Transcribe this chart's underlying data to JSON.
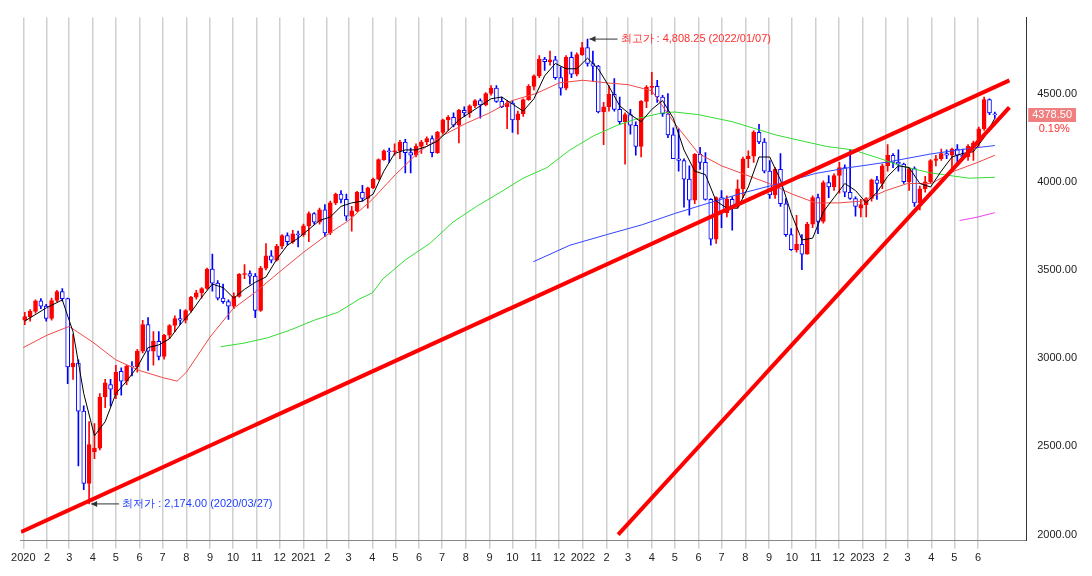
{
  "chart_data": {
    "type": "candlestick",
    "x": [
      "2020-01-03",
      "2020-01-10",
      "2020-01-17",
      "2020-01-24",
      "2020-01-31",
      "2020-02-07",
      "2020-02-14",
      "2020-02-21",
      "2020-02-28",
      "2020-03-06",
      "2020-03-13",
      "2020-03-20",
      "2020-03-27",
      "2020-04-03",
      "2020-04-10",
      "2020-04-17",
      "2020-04-24",
      "2020-05-01",
      "2020-05-08",
      "2020-05-15",
      "2020-05-22",
      "2020-05-29",
      "2020-06-05",
      "2020-06-12",
      "2020-06-19",
      "2020-06-26",
      "2020-07-03",
      "2020-07-10",
      "2020-07-17",
      "2020-07-24",
      "2020-07-31",
      "2020-08-07",
      "2020-08-14",
      "2020-08-21",
      "2020-08-28",
      "2020-09-04",
      "2020-09-11",
      "2020-09-18",
      "2020-09-25",
      "2020-10-02",
      "2020-10-09",
      "2020-10-16",
      "2020-10-23",
      "2020-10-30",
      "2020-11-06",
      "2020-11-13",
      "2020-11-20",
      "2020-11-27",
      "2020-12-04",
      "2020-12-11",
      "2020-12-18",
      "2020-12-25",
      "2021-01-01",
      "2021-01-08",
      "2021-01-15",
      "2021-01-22",
      "2021-01-29",
      "2021-02-05",
      "2021-02-12",
      "2021-02-19",
      "2021-02-26",
      "2021-03-05",
      "2021-03-12",
      "2021-03-19",
      "2021-03-26",
      "2021-04-02",
      "2021-04-09",
      "2021-04-16",
      "2021-04-23",
      "2021-04-30",
      "2021-05-07",
      "2021-05-14",
      "2021-05-21",
      "2021-05-28",
      "2021-06-04",
      "2021-06-11",
      "2021-06-18",
      "2021-06-25",
      "2021-07-02",
      "2021-07-09",
      "2021-07-16",
      "2021-07-23",
      "2021-07-30",
      "2021-08-06",
      "2021-08-13",
      "2021-08-20",
      "2021-08-27",
      "2021-09-03",
      "2021-09-10",
      "2021-09-17",
      "2021-09-24",
      "2021-10-01",
      "2021-10-08",
      "2021-10-15",
      "2021-10-22",
      "2021-10-29",
      "2021-11-05",
      "2021-11-12",
      "2021-11-19",
      "2021-11-26",
      "2021-12-03",
      "2021-12-10",
      "2021-12-17",
      "2021-12-24",
      "2021-12-31",
      "2022-01-07",
      "2022-01-14",
      "2022-01-21",
      "2022-01-28",
      "2022-02-04",
      "2022-02-11",
      "2022-02-18",
      "2022-02-25",
      "2022-03-04",
      "2022-03-11",
      "2022-03-18",
      "2022-03-25",
      "2022-04-01",
      "2022-04-08",
      "2022-04-15",
      "2022-04-22",
      "2022-04-29",
      "2022-05-06",
      "2022-05-13",
      "2022-05-20",
      "2022-05-27",
      "2022-06-03",
      "2022-06-10",
      "2022-06-17",
      "2022-06-24",
      "2022-07-01",
      "2022-07-08",
      "2022-07-15",
      "2022-07-22",
      "2022-07-29",
      "2022-08-05",
      "2022-08-12",
      "2022-08-19",
      "2022-08-26",
      "2022-09-02",
      "2022-09-09",
      "2022-09-16",
      "2022-09-23",
      "2022-09-30",
      "2022-10-07",
      "2022-10-14",
      "2022-10-21",
      "2022-10-28",
      "2022-11-04",
      "2022-11-11",
      "2022-11-18",
      "2022-11-25",
      "2022-12-02",
      "2022-12-09",
      "2022-12-16",
      "2022-12-23",
      "2022-12-30",
      "2023-01-06",
      "2023-01-13",
      "2023-01-20",
      "2023-01-27",
      "2023-02-03",
      "2023-02-10",
      "2023-02-17",
      "2023-02-24",
      "2023-03-03",
      "2023-03-10",
      "2023-03-17",
      "2023-03-24",
      "2023-03-31",
      "2023-04-07",
      "2023-04-14",
      "2023-04-21",
      "2023-04-28",
      "2023-05-05",
      "2023-05-12",
      "2023-05-19",
      "2023-05-26",
      "2023-06-02",
      "2023-06-09",
      "2023-06-16",
      "2023-06-23"
    ],
    "ohlc": [
      [
        3215,
        3260,
        3190,
        3235
      ],
      [
        3235,
        3275,
        3210,
        3265
      ],
      [
        3265,
        3330,
        3255,
        3325
      ],
      [
        3325,
        3337,
        3280,
        3295
      ],
      [
        3295,
        3305,
        3210,
        3225
      ],
      [
        3225,
        3340,
        3215,
        3327
      ],
      [
        3327,
        3385,
        3320,
        3378
      ],
      [
        3378,
        3395,
        3325,
        3337
      ],
      [
        3337,
        3340,
        2855,
        2951
      ],
      [
        2951,
        3135,
        2880,
        2972
      ],
      [
        2972,
        2990,
        2390,
        2700
      ],
      [
        2700,
        2730,
        2255,
        2290
      ],
      [
        2290,
        2640,
        2174,
        2510
      ],
      [
        2470,
        2630,
        2430,
        2490
      ],
      [
        2490,
        2800,
        2480,
        2780
      ],
      [
        2780,
        2880,
        2720,
        2860
      ],
      [
        2850,
        2880,
        2730,
        2825
      ],
      [
        2790,
        2960,
        2770,
        2920
      ],
      [
        2925,
        2945,
        2790,
        2870
      ],
      [
        2870,
        2960,
        2850,
        2955
      ],
      [
        2955,
        2980,
        2900,
        2950
      ],
      [
        2950,
        3050,
        2920,
        3040
      ],
      [
        3040,
        3215,
        3030,
        3190
      ],
      [
        3190,
        3230,
        2930,
        3040
      ],
      [
        3040,
        3150,
        2960,
        3095
      ],
      [
        3095,
        3150,
        2990,
        3010
      ],
      [
        3010,
        3135,
        2995,
        3130
      ],
      [
        3130,
        3190,
        3110,
        3185
      ],
      [
        3185,
        3240,
        3150,
        3225
      ],
      [
        3225,
        3275,
        3190,
        3215
      ],
      [
        3215,
        3275,
        3200,
        3270
      ],
      [
        3270,
        3350,
        3260,
        3345
      ],
      [
        3345,
        3385,
        3335,
        3370
      ],
      [
        3370,
        3400,
        3340,
        3395
      ],
      [
        3395,
        3510,
        3390,
        3505
      ],
      [
        3505,
        3590,
        3380,
        3425
      ],
      [
        3425,
        3440,
        3330,
        3340
      ],
      [
        3340,
        3420,
        3310,
        3320
      ],
      [
        3320,
        3330,
        3220,
        3295
      ],
      [
        3295,
        3370,
        3280,
        3350
      ],
      [
        3350,
        3480,
        3345,
        3475
      ],
      [
        3475,
        3530,
        3450,
        3480
      ],
      [
        3480,
        3495,
        3420,
        3465
      ],
      [
        3465,
        3480,
        3230,
        3270
      ],
      [
        3270,
        3520,
        3265,
        3510
      ],
      [
        3510,
        3650,
        3500,
        3580
      ],
      [
        3580,
        3610,
        3540,
        3555
      ],
      [
        3555,
        3645,
        3550,
        3635
      ],
      [
        3635,
        3700,
        3620,
        3695
      ],
      [
        3695,
        3710,
        3640,
        3660
      ],
      [
        3660,
        3725,
        3650,
        3705
      ],
      [
        3705,
        3720,
        3630,
        3700
      ],
      [
        3700,
        3760,
        3690,
        3750
      ],
      [
        3750,
        3830,
        3660,
        3820
      ],
      [
        3820,
        3825,
        3760,
        3770
      ],
      [
        3770,
        3850,
        3760,
        3840
      ],
      [
        3840,
        3870,
        3690,
        3710
      ],
      [
        3710,
        3890,
        3700,
        3880
      ],
      [
        3880,
        3935,
        3870,
        3930
      ],
      [
        3930,
        3950,
        3880,
        3900
      ],
      [
        3900,
        3930,
        3780,
        3805
      ],
      [
        3805,
        3860,
        3720,
        3835
      ],
      [
        3835,
        3945,
        3830,
        3940
      ],
      [
        3940,
        3980,
        3890,
        3905
      ],
      [
        3905,
        3970,
        3850,
        3965
      ],
      [
        3965,
        4020,
        3960,
        4015
      ],
      [
        4015,
        4130,
        4010,
        4125
      ],
      [
        4125,
        4180,
        4120,
        4175
      ],
      [
        4175,
        4190,
        4110,
        4170
      ],
      [
        4170,
        4215,
        4150,
        4175
      ],
      [
        4175,
        4235,
        4130,
        4225
      ],
      [
        4225,
        4240,
        4050,
        4165
      ],
      [
        4165,
        4190,
        4050,
        4150
      ],
      [
        4150,
        4215,
        4140,
        4200
      ],
      [
        4200,
        4235,
        4160,
        4225
      ],
      [
        4225,
        4255,
        4210,
        4245
      ],
      [
        4245,
        4260,
        4140,
        4165
      ],
      [
        4165,
        4285,
        4160,
        4280
      ],
      [
        4280,
        4355,
        4270,
        4350
      ],
      [
        4350,
        4375,
        4290,
        4365
      ],
      [
        4365,
        4390,
        4310,
        4320
      ],
      [
        4320,
        4410,
        4220,
        4405
      ],
      [
        4405,
        4425,
        4370,
        4390
      ],
      [
        4390,
        4435,
        4365,
        4430
      ],
      [
        4430,
        4465,
        4420,
        4460
      ],
      [
        4460,
        4470,
        4360,
        4435
      ],
      [
        4435,
        4505,
        4430,
        4500
      ],
      [
        4500,
        4545,
        4490,
        4530
      ],
      [
        4530,
        4545,
        4450,
        4455
      ],
      [
        4455,
        4480,
        4420,
        4425
      ],
      [
        4425,
        4460,
        4300,
        4445
      ],
      [
        4445,
        4460,
        4280,
        4350
      ],
      [
        4350,
        4400,
        4270,
        4385
      ],
      [
        4385,
        4470,
        4370,
        4465
      ],
      [
        4465,
        4550,
        4460,
        4540
      ],
      [
        4540,
        4605,
        4520,
        4600
      ],
      [
        4600,
        4715,
        4590,
        4695
      ],
      [
        4695,
        4705,
        4630,
        4680
      ],
      [
        4680,
        4740,
        4660,
        4690
      ],
      [
        4690,
        4710,
        4580,
        4590
      ],
      [
        4590,
        4650,
        4490,
        4530
      ],
      [
        4530,
        4715,
        4520,
        4705
      ],
      [
        4705,
        4735,
        4590,
        4610
      ],
      [
        4610,
        4730,
        4600,
        4720
      ],
      [
        4720,
        4790,
        4715,
        4760
      ],
      [
        4760,
        4808.25,
        4655,
        4670
      ],
      [
        4670,
        4740,
        4570,
        4655
      ],
      [
        4655,
        4660,
        4390,
        4395
      ],
      [
        4395,
        4450,
        4210,
        4425
      ],
      [
        4425,
        4545,
        4400,
        4495
      ],
      [
        4495,
        4585,
        4400,
        4410
      ],
      [
        4410,
        4480,
        4325,
        4340
      ],
      [
        4340,
        4390,
        4100,
        4380
      ],
      [
        4380,
        4410,
        4270,
        4320
      ],
      [
        4320,
        4340,
        4150,
        4200
      ],
      [
        4200,
        4460,
        4140,
        4455
      ],
      [
        4455,
        4545,
        4420,
        4535
      ],
      [
        4535,
        4620,
        4495,
        4540
      ],
      [
        4540,
        4575,
        4450,
        4480
      ],
      [
        4480,
        4490,
        4370,
        4385
      ],
      [
        4385,
        4500,
        4250,
        4265
      ],
      [
        4265,
        4305,
        4130,
        4130
      ],
      [
        4130,
        4300,
        4060,
        4120
      ],
      [
        4120,
        4130,
        3855,
        4015
      ],
      [
        4015,
        4090,
        3810,
        3895
      ],
      [
        3895,
        4160,
        3875,
        4155
      ],
      [
        4155,
        4195,
        4070,
        4110
      ],
      [
        4110,
        4165,
        3895,
        3900
      ],
      [
        3900,
        3905,
        3640,
        3675
      ],
      [
        3675,
        3915,
        3650,
        3910
      ],
      [
        3910,
        3950,
        3740,
        3825
      ],
      [
        3825,
        3920,
        3800,
        3900
      ],
      [
        3900,
        3915,
        3725,
        3860
      ],
      [
        3860,
        4010,
        3850,
        3960
      ],
      [
        3960,
        4140,
        3910,
        4130
      ],
      [
        4130,
        4175,
        4080,
        4145
      ],
      [
        4145,
        4290,
        4110,
        4280
      ],
      [
        4280,
        4325,
        4215,
        4225
      ],
      [
        4225,
        4245,
        4050,
        4060
      ],
      [
        4060,
        4120,
        3905,
        3925
      ],
      [
        3925,
        4080,
        3905,
        4070
      ],
      [
        4070,
        4160,
        3860,
        3875
      ],
      [
        3875,
        3905,
        3690,
        3700
      ],
      [
        3700,
        3735,
        3610,
        3615
      ],
      [
        3615,
        3810,
        3600,
        3645
      ],
      [
        3645,
        3700,
        3502,
        3590
      ],
      [
        3590,
        3770,
        3590,
        3760
      ],
      [
        3760,
        3920,
        3740,
        3910
      ],
      [
        3910,
        3930,
        3705,
        3775
      ],
      [
        3775,
        4005,
        3765,
        3995
      ],
      [
        3995,
        4035,
        3910,
        3970
      ],
      [
        3970,
        4045,
        3950,
        4035
      ],
      [
        4035,
        4110,
        3935,
        4080
      ],
      [
        4080,
        4095,
        3915,
        3940
      ],
      [
        3940,
        4180,
        3900,
        3905
      ],
      [
        3905,
        3915,
        3805,
        3860
      ],
      [
        3850,
        3900,
        3800,
        3870
      ],
      [
        3870,
        3910,
        3800,
        3905
      ],
      [
        3905,
        4015,
        3890,
        4010
      ],
      [
        4010,
        4030,
        3900,
        3990
      ],
      [
        3990,
        4100,
        3960,
        4090
      ],
      [
        4090,
        4210,
        4060,
        4150
      ],
      [
        4150,
        4160,
        4080,
        4110
      ],
      [
        4110,
        4180,
        4060,
        4100
      ],
      [
        4100,
        4105,
        3990,
        4000
      ],
      [
        4000,
        4080,
        3950,
        4075
      ],
      [
        4075,
        4085,
        3860,
        3880
      ],
      [
        3880,
        3975,
        3840,
        3960
      ],
      [
        3960,
        4030,
        3940,
        4000
      ],
      [
        4000,
        4125,
        3990,
        4120
      ],
      [
        4120,
        4150,
        4090,
        4130
      ],
      [
        4130,
        4185,
        4120,
        4160
      ],
      [
        4160,
        4180,
        4130,
        4150
      ],
      [
        4150,
        4190,
        4080,
        4185
      ],
      [
        4185,
        4210,
        4100,
        4150
      ],
      [
        4150,
        4185,
        4130,
        4140
      ],
      [
        4140,
        4210,
        4120,
        4200
      ],
      [
        4200,
        4230,
        4120,
        4220
      ],
      [
        4220,
        4310,
        4200,
        4300
      ],
      [
        4300,
        4480,
        4290,
        4465
      ],
      [
        4465,
        4470,
        4380,
        4390
      ],
      [
        4385,
        4395,
        4360,
        4378.5
      ]
    ],
    "colors": [
      "#ff0000",
      "#ff0000",
      "#ff0000",
      "#0000ff",
      "#0000ff",
      "#ff0000",
      "#ff0000",
      "#0000ff",
      "#0000ff",
      "#ff0000",
      "#0000ff",
      "#0000ff",
      "#ff0000",
      "#ff0000",
      "#ff0000",
      "#ff0000",
      "#0000ff",
      "#ff0000",
      "#0000ff",
      "#ff0000",
      "#0000ff",
      "#ff0000",
      "#ff0000",
      "#0000ff",
      "#ff0000",
      "#0000ff",
      "#ff0000",
      "#ff0000",
      "#ff0000",
      "#0000ff",
      "#ff0000",
      "#ff0000",
      "#ff0000",
      "#ff0000",
      "#ff0000",
      "#0000ff",
      "#0000ff",
      "#0000ff",
      "#0000ff",
      "#ff0000",
      "#ff0000",
      "#ff0000",
      "#0000ff",
      "#0000ff",
      "#ff0000",
      "#ff0000",
      "#0000ff",
      "#ff0000",
      "#ff0000",
      "#0000ff",
      "#ff0000",
      "#0000ff",
      "#ff0000",
      "#ff0000",
      "#0000ff",
      "#ff0000",
      "#0000ff",
      "#ff0000",
      "#ff0000",
      "#0000ff",
      "#0000ff",
      "#ff0000",
      "#ff0000",
      "#0000ff",
      "#ff0000",
      "#ff0000",
      "#ff0000",
      "#ff0000",
      "#0000ff",
      "#ff0000",
      "#ff0000",
      "#0000ff",
      "#0000ff",
      "#ff0000",
      "#ff0000",
      "#ff0000",
      "#0000ff",
      "#ff0000",
      "#ff0000",
      "#ff0000",
      "#0000ff",
      "#ff0000",
      "#0000ff",
      "#ff0000",
      "#ff0000",
      "#0000ff",
      "#ff0000",
      "#ff0000",
      "#0000ff",
      "#0000ff",
      "#ff0000",
      "#0000ff",
      "#ff0000",
      "#ff0000",
      "#ff0000",
      "#ff0000",
      "#ff0000",
      "#0000ff",
      "#ff0000",
      "#0000ff",
      "#0000ff",
      "#ff0000",
      "#0000ff",
      "#ff0000",
      "#ff0000",
      "#0000ff",
      "#0000ff",
      "#0000ff",
      "#ff0000",
      "#ff0000",
      "#0000ff",
      "#0000ff",
      "#ff0000",
      "#0000ff",
      "#0000ff",
      "#ff0000",
      "#ff0000",
      "#ff0000",
      "#0000ff",
      "#0000ff",
      "#0000ff",
      "#0000ff",
      "#0000ff",
      "#0000ff",
      "#0000ff",
      "#ff0000",
      "#0000ff",
      "#0000ff",
      "#0000ff",
      "#ff0000",
      "#0000ff",
      "#ff0000",
      "#0000ff",
      "#ff0000",
      "#ff0000",
      "#ff0000",
      "#ff0000",
      "#0000ff",
      "#0000ff",
      "#0000ff",
      "#ff0000",
      "#0000ff",
      "#0000ff",
      "#0000ff",
      "#ff0000",
      "#0000ff",
      "#ff0000",
      "#ff0000",
      "#0000ff",
      "#ff0000",
      "#0000ff",
      "#ff0000",
      "#ff0000",
      "#0000ff",
      "#0000ff",
      "#0000ff",
      "#ff0000",
      "#ff0000",
      "#ff0000",
      "#0000ff",
      "#ff0000",
      "#ff0000",
      "#0000ff",
      "#0000ff",
      "#0000ff",
      "#ff0000",
      "#0000ff",
      "#ff0000",
      "#ff0000",
      "#ff0000",
      "#ff0000",
      "#ff0000",
      "#0000ff",
      "#ff0000",
      "#0000ff",
      "#0000ff",
      "#ff0000",
      "#ff0000",
      "#ff0000",
      "#ff0000",
      "#0000ff",
      "#0000ff"
    ],
    "series": [
      {
        "type": "line",
        "color": "#000000",
        "x": [
          "2020-01-03",
          "2020-01-31",
          "2020-02-21",
          "2020-03-06",
          "2020-03-20",
          "2020-04-03",
          "2020-04-17",
          "2020-05-01",
          "2020-05-15",
          "2020-05-29",
          "2020-06-12",
          "2020-06-26",
          "2020-07-10",
          "2020-07-24",
          "2020-08-07",
          "2020-08-21",
          "2020-09-04",
          "2020-09-18",
          "2020-10-02",
          "2020-10-16",
          "2020-10-30",
          "2020-11-13",
          "2020-11-27",
          "2020-12-11",
          "2020-12-25",
          "2021-01-08",
          "2021-01-22",
          "2021-02-05",
          "2021-02-19",
          "2021-03-05",
          "2021-03-19",
          "2021-04-02",
          "2021-04-16",
          "2021-04-30",
          "2021-05-14",
          "2021-05-28",
          "2021-06-11",
          "2021-06-25",
          "2021-07-09",
          "2021-07-23",
          "2021-08-06",
          "2021-08-20",
          "2021-09-03",
          "2021-09-17",
          "2021-10-01",
          "2021-10-15",
          "2021-10-29",
          "2021-11-12",
          "2021-11-26",
          "2021-12-10",
          "2021-12-24",
          "2022-01-07",
          "2022-01-21",
          "2022-02-04",
          "2022-02-18",
          "2022-03-04",
          "2022-03-18",
          "2022-04-01",
          "2022-04-15",
          "2022-04-29",
          "2022-05-13",
          "2022-05-27",
          "2022-06-10",
          "2022-06-24",
          "2022-07-08",
          "2022-07-22",
          "2022-08-05",
          "2022-08-19",
          "2022-09-02",
          "2022-09-16",
          "2022-09-30",
          "2022-10-14",
          "2022-10-28",
          "2022-11-11",
          "2022-11-25",
          "2022-12-09",
          "2022-12-23",
          "2023-01-06",
          "2023-01-20",
          "2023-02-03",
          "2023-02-17",
          "2023-03-03",
          "2023-03-17",
          "2023-03-31",
          "2023-04-14",
          "2023-04-28",
          "2023-05-12",
          "2023-05-26",
          "2023-06-09",
          "2023-06-23"
        ],
        "values": [
          3210,
          3285,
          3330,
          3150,
          2800,
          2560,
          2640,
          2800,
          2870,
          2950,
          3060,
          3075,
          3110,
          3190,
          3260,
          3345,
          3420,
          3400,
          3340,
          3390,
          3430,
          3460,
          3560,
          3640,
          3680,
          3730,
          3780,
          3800,
          3860,
          3880,
          3890,
          3930,
          4060,
          4160,
          4180,
          4180,
          4200,
          4230,
          4290,
          4350,
          4390,
          4430,
          4470,
          4480,
          4440,
          4400,
          4470,
          4600,
          4670,
          4640,
          4640,
          4700,
          4640,
          4540,
          4430,
          4380,
          4340,
          4410,
          4460,
          4360,
          4180,
          4060,
          4040,
          3890,
          3850,
          3850,
          3970,
          4140,
          4140,
          4010,
          3820,
          3670,
          3680,
          3830,
          3910,
          3990,
          3950,
          3880,
          3940,
          4030,
          4090,
          4080,
          3990,
          3970,
          4060,
          4140,
          4160,
          4170,
          4250,
          4360
        ]
      },
      {
        "type": "line",
        "color": "#f04848",
        "x": [
          "2020-01-01",
          "2020-02-01",
          "2020-03-01",
          "2020-04-01",
          "2020-05-01",
          "2020-06-01",
          "2020-07-01",
          "2020-07-20",
          "2020-08-01",
          "2020-09-01",
          "2020-10-01",
          "2020-11-01",
          "2020-12-01",
          "2021-01-01",
          "2021-02-01",
          "2021-03-01",
          "2021-04-01",
          "2021-05-01",
          "2021-06-01",
          "2021-07-01",
          "2021-08-01",
          "2021-09-01",
          "2021-10-01",
          "2021-11-01",
          "2021-12-01",
          "2022-01-01",
          "2022-02-01",
          "2022-03-01",
          "2022-04-01",
          "2022-05-01",
          "2022-06-01",
          "2022-07-01",
          "2022-08-01",
          "2022-09-01",
          "2022-10-01",
          "2022-11-01",
          "2022-12-01",
          "2023-01-01",
          "2023-02-01",
          "2023-03-01",
          "2023-04-01",
          "2023-05-01",
          "2023-06-01",
          "2023-06-23"
        ],
        "values": [
          3060,
          3130,
          3180,
          3090,
          2990,
          2930,
          2890,
          2870,
          2920,
          3120,
          3280,
          3380,
          3490,
          3600,
          3700,
          3780,
          3900,
          4040,
          4170,
          4260,
          4330,
          4390,
          4460,
          4500,
          4560,
          4575,
          4560,
          4550,
          4515,
          4330,
          4160,
          4090,
          4040,
          3990,
          3930,
          3880,
          3880,
          3890,
          3950,
          3990,
          3990,
          4060,
          4110,
          4150
        ]
      },
      {
        "type": "line",
        "color": "#33dd33",
        "x": [
          "2020-09-15",
          "2020-10-15",
          "2020-11-15",
          "2020-12-15",
          "2021-01-15",
          "2021-02-15",
          "2021-03-15",
          "2021-04-01",
          "2021-04-15",
          "2021-05-15",
          "2021-06-15",
          "2021-07-15",
          "2021-08-15",
          "2021-09-15",
          "2021-10-15",
          "2021-11-15",
          "2021-12-15",
          "2022-01-15",
          "2022-02-15",
          "2022-03-15",
          "2022-04-15",
          "2022-05-01",
          "2022-06-01",
          "2022-07-15",
          "2022-09-10",
          "2022-10-15",
          "2022-11-15",
          "2022-12-20",
          "2023-01-25",
          "2023-02-20",
          "2023-03-31",
          "2023-05-20",
          "2023-06-23"
        ],
        "values": [
          3065,
          3085,
          3115,
          3160,
          3215,
          3260,
          3335,
          3370,
          3450,
          3560,
          3650,
          3770,
          3860,
          3940,
          4020,
          4080,
          4180,
          4260,
          4320,
          4360,
          4390,
          4395,
          4380,
          4340,
          4265,
          4230,
          4200,
          4180,
          4130,
          4090,
          4050,
          4020,
          4025
        ]
      },
      {
        "type": "line",
        "color": "#3344ff",
        "x": [
          "2021-10-28",
          "2021-12-15",
          "2022-02-01",
          "2022-03-20",
          "2022-05-01",
          "2022-06-15",
          "2022-08-01",
          "2022-09-15",
          "2022-11-01",
          "2022-12-15",
          "2023-02-01",
          "2023-03-31",
          "2023-05-15",
          "2023-06-23"
        ],
        "values": [
          3546,
          3640,
          3700,
          3757,
          3820,
          3880,
          3940,
          3990,
          4047,
          4080,
          4110,
          4157,
          4185,
          4205
        ]
      },
      {
        "type": "line",
        "color": "#ee44ee",
        "x": [
          "2023-05-08",
          "2023-06-01",
          "2023-06-23"
        ],
        "values": [
          3780,
          3800,
          3825
        ]
      },
      {
        "type": "line",
        "color": "#ff0000",
        "x": [
          "2019-12-29",
          "2023-07-12"
        ],
        "values": [
          2015,
          4574
        ]
      },
      {
        "type": "line",
        "color": "#ff0000",
        "x": [
          "2022-02-16",
          "2023-07-12"
        ],
        "values": [
          2000,
          4421
        ]
      }
    ],
    "xlim": [
      "2019-12-29",
      "2023-08-03"
    ],
    "ylim": [
      1965,
      4930
    ],
    "xticks": [
      {
        "value": "2020-01-01",
        "label": "2020"
      },
      {
        "value": "2020-02-01",
        "label": "2"
      },
      {
        "value": "2020-03-01",
        "label": "3"
      },
      {
        "value": "2020-04-01",
        "label": "4"
      },
      {
        "value": "2020-05-01",
        "label": "5"
      },
      {
        "value": "2020-06-01",
        "label": "6"
      },
      {
        "value": "2020-07-01",
        "label": "7"
      },
      {
        "value": "2020-08-01",
        "label": "8"
      },
      {
        "value": "2020-09-01",
        "label": "9"
      },
      {
        "value": "2020-10-01",
        "label": "10"
      },
      {
        "value": "2020-11-01",
        "label": "11"
      },
      {
        "value": "2020-12-01",
        "label": "12"
      },
      {
        "value": "2021-01-01",
        "label": "2021"
      },
      {
        "value": "2021-02-01",
        "label": "2"
      },
      {
        "value": "2021-03-01",
        "label": "3"
      },
      {
        "value": "2021-04-01",
        "label": "4"
      },
      {
        "value": "2021-05-01",
        "label": "5"
      },
      {
        "value": "2021-06-01",
        "label": "6"
      },
      {
        "value": "2021-07-01",
        "label": "7"
      },
      {
        "value": "2021-08-01",
        "label": "8"
      },
      {
        "value": "2021-09-01",
        "label": "9"
      },
      {
        "value": "2021-10-01",
        "label": "10"
      },
      {
        "value": "2021-11-01",
        "label": "11"
      },
      {
        "value": "2021-12-01",
        "label": "12"
      },
      {
        "value": "2022-01-01",
        "label": "2022"
      },
      {
        "value": "2022-02-01",
        "label": "2"
      },
      {
        "value": "2022-03-01",
        "label": "3"
      },
      {
        "value": "2022-04-01",
        "label": "4"
      },
      {
        "value": "2022-05-01",
        "label": "5"
      },
      {
        "value": "2022-06-01",
        "label": "6"
      },
      {
        "value": "2022-07-01",
        "label": "7"
      },
      {
        "value": "2022-08-01",
        "label": "8"
      },
      {
        "value": "2022-09-01",
        "label": "9"
      },
      {
        "value": "2022-10-01",
        "label": "10"
      },
      {
        "value": "2022-11-01",
        "label": "11"
      },
      {
        "value": "2022-12-01",
        "label": "12"
      },
      {
        "value": "2023-01-01",
        "label": "2023"
      },
      {
        "value": "2023-02-01",
        "label": "2"
      },
      {
        "value": "2023-03-01",
        "label": "3"
      },
      {
        "value": "2023-04-01",
        "label": "4"
      },
      {
        "value": "2023-05-01",
        "label": "5"
      },
      {
        "value": "2023-06-01",
        "label": "6"
      }
    ],
    "yticks": [
      {
        "value": 2000,
        "label": "2000.00"
      },
      {
        "value": 2500,
        "label": "2500.00"
      },
      {
        "value": 3000,
        "label": "3000.00"
      },
      {
        "value": 3500,
        "label": "3500.00"
      },
      {
        "value": 4000,
        "label": "4000.00"
      },
      {
        "value": 4500,
        "label": "4500.00"
      }
    ],
    "grid": "x",
    "annotations": [
      {
        "text": "최고가 : 4,808.25 (2022/01/07)",
        "x": "2022-01-07",
        "y": 4808.25
      },
      {
        "text": "최저가 : 2,174.00 (2020/03/27)",
        "x": "2020-03-27",
        "y": 2174
      },
      "4378.50",
      "0.19%"
    ]
  }
}
